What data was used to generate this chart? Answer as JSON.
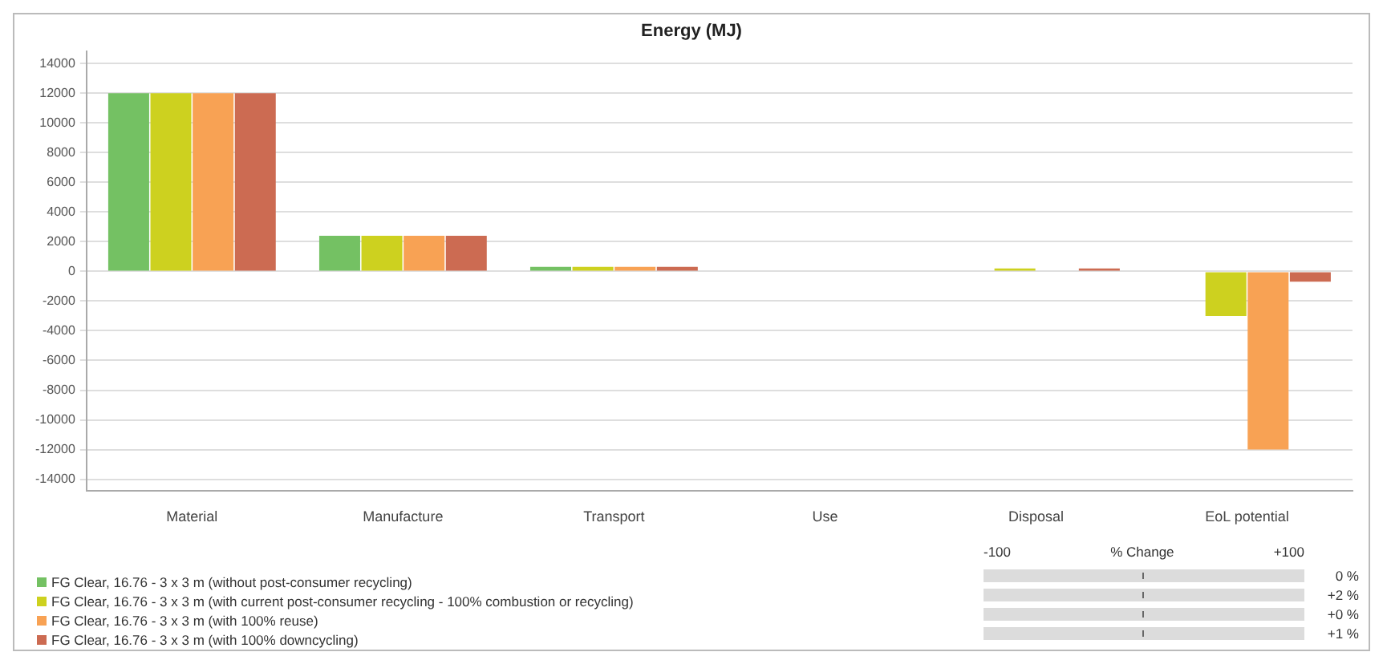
{
  "chart_data": {
    "type": "bar",
    "title": "Energy (MJ)",
    "categories": [
      "Material",
      "Manufacture",
      "Transport",
      "Use",
      "Disposal",
      "EoL potential"
    ],
    "series": [
      {
        "name": "FG Clear, 16.76 - 3 x 3 m (without post-consumer recycling)",
        "color": "#74c163",
        "values": [
          12000,
          2400,
          300,
          0,
          0,
          0
        ]
      },
      {
        "name": "FG Clear, 16.76 - 3 x 3 m (with current post-consumer recycling - 100% combustion or recycling)",
        "color": "#cdd11f",
        "values": [
          12000,
          2400,
          300,
          0,
          200,
          -3000
        ]
      },
      {
        "name": "FG Clear, 16.76 - 3 x 3 m (with 100% reuse)",
        "color": "#f8a254",
        "values": [
          12000,
          2400,
          300,
          0,
          0,
          -12000
        ]
      },
      {
        "name": "FG Clear, 16.76 - 3 x 3 m (with 100% downcycling)",
        "color": "#cc6b52",
        "values": [
          12000,
          2400,
          300,
          0,
          200,
          -700
        ]
      }
    ],
    "ylim": [
      -14800,
      14800
    ],
    "yticks": [
      -14000,
      -12000,
      -10000,
      -8000,
      -6000,
      -4000,
      -2000,
      0,
      2000,
      4000,
      6000,
      8000,
      10000,
      12000,
      14000
    ],
    "grid": "y",
    "legend": "bottom left",
    "annotations": [
      "-100",
      "% Change",
      "+100",
      "0 %",
      "+2 %",
      "+0 %",
      "+1 %"
    ]
  }
}
